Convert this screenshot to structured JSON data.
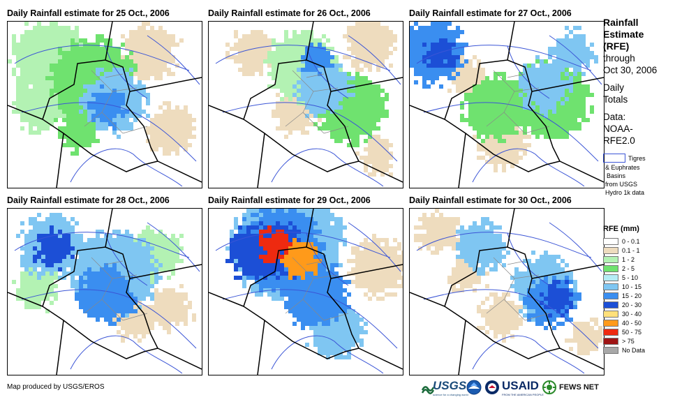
{
  "panels": [
    {
      "title": "Daily Rainfall estimate for 25 Oct., 2006"
    },
    {
      "title": "Daily Rainfall estimate for 26 Oct., 2006"
    },
    {
      "title": "Daily Rainfall estimate for 27 Oct., 2006"
    },
    {
      "title": "Daily Rainfall estimate for 28 Oct., 2006"
    },
    {
      "title": "Daily Rainfall estimate for 29 Oct., 2006"
    },
    {
      "title": "Daily Rainfall estimate for 30 Oct., 2006"
    }
  ],
  "side": {
    "title_lines": [
      "Rainfall",
      "Estimate",
      "(RFE)"
    ],
    "through": "through",
    "date": "Oct 30, 2006",
    "totals_lines": [
      "Daily",
      "Totals"
    ],
    "data_lines": [
      "Data:",
      "NOAA-",
      "RFE2.0"
    ],
    "basin_lines": [
      "Tigres",
      "& Euphrates",
      "Basins",
      "from USGS",
      "Hydro 1k data"
    ],
    "basin_color": "#3b55d6"
  },
  "legend": {
    "title": "RFE (mm)",
    "items": [
      {
        "label": "0 - 0.1",
        "color": "#ffffff"
      },
      {
        "label": "0.1 - 1",
        "color": "#eedcbe"
      },
      {
        "label": "1 - 2",
        "color": "#b3f2b3"
      },
      {
        "label": "2 - 5",
        "color": "#6fe26f"
      },
      {
        "label": "5 - 10",
        "color": "#b5ecf5"
      },
      {
        "label": "10 - 15",
        "color": "#7fc6f2"
      },
      {
        "label": "15 - 20",
        "color": "#3a8ef0"
      },
      {
        "label": "20 - 30",
        "color": "#1c4fd6"
      },
      {
        "label": "30 - 40",
        "color": "#ffe07a"
      },
      {
        "label": "40 - 50",
        "color": "#ff9a1a"
      },
      {
        "label": "50 - 75",
        "color": "#ee2a10"
      },
      {
        "label": "> 75",
        "color": "#9e1414"
      },
      {
        "label": "No Data",
        "color": "#a8a8a8"
      }
    ]
  },
  "credit": "Map produced by USGS/EROS",
  "logos": {
    "usgs": "USGS",
    "usgs_tagline": "science for a changing world",
    "usaid": "USAID",
    "usaid_tagline": "FROM THE AMERICAN PEOPLE",
    "fews": "FEWS NET"
  }
}
